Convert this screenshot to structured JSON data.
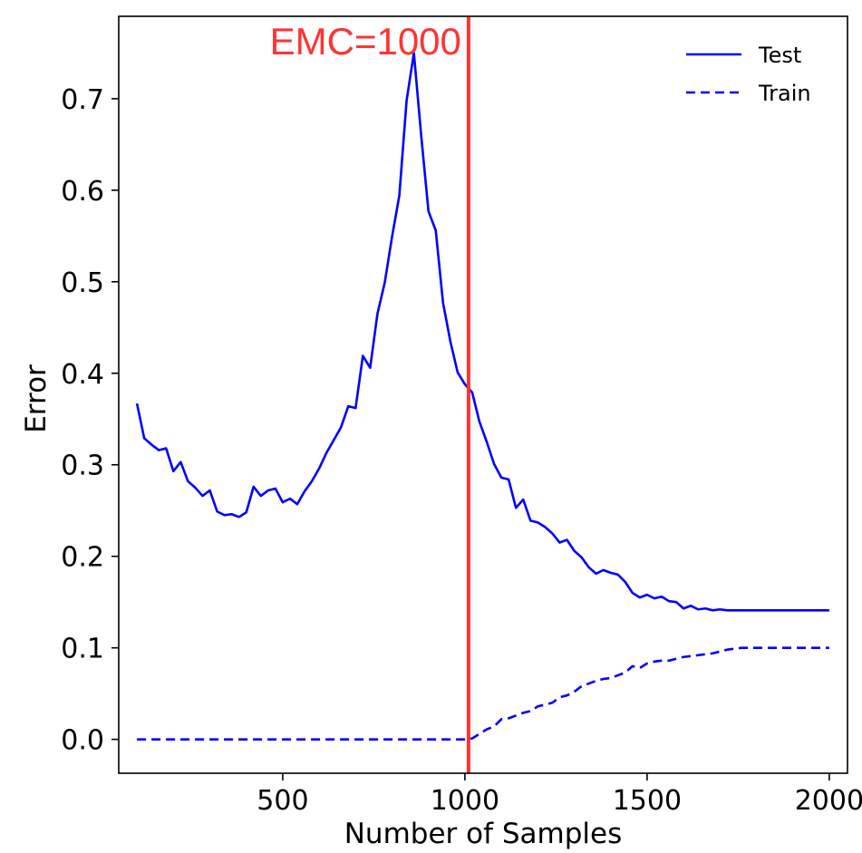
{
  "chart_data": {
    "type": "line",
    "xlabel": "Number of Samples",
    "ylabel": "Error",
    "xlim": [
      50,
      2050
    ],
    "ylim": [
      -0.037,
      0.79
    ],
    "xticks": [
      500,
      1000,
      1500,
      2000
    ],
    "xtick_labels": [
      "500",
      "1000",
      "1500",
      "2000"
    ],
    "yticks": [
      0.0,
      0.1,
      0.2,
      0.3,
      0.4,
      0.5,
      0.6,
      0.7
    ],
    "ytick_labels": [
      "0.0",
      "0.1",
      "0.2",
      "0.3",
      "0.4",
      "0.5",
      "0.6",
      "0.7"
    ],
    "grid": false,
    "legend_position": "top-right",
    "x": [
      100,
      120,
      140,
      160,
      180,
      200,
      220,
      240,
      260,
      280,
      300,
      320,
      340,
      360,
      380,
      400,
      420,
      440,
      460,
      480,
      500,
      520,
      540,
      560,
      580,
      600,
      620,
      640,
      660,
      680,
      700,
      720,
      740,
      760,
      780,
      800,
      820,
      840,
      860,
      880,
      900,
      920,
      940,
      960,
      980,
      1000,
      1020,
      1040,
      1060,
      1080,
      1100,
      1120,
      1140,
      1160,
      1180,
      1200,
      1220,
      1240,
      1260,
      1280,
      1300,
      1320,
      1340,
      1360,
      1380,
      1400,
      1420,
      1440,
      1460,
      1480,
      1500,
      1520,
      1540,
      1560,
      1580,
      1600,
      1620,
      1640,
      1660,
      1680,
      1700,
      1720,
      1740,
      1760,
      1780,
      1800,
      1820,
      1840,
      1860,
      1880,
      1900,
      1920,
      1940,
      1960,
      1980,
      2000
    ],
    "series": [
      {
        "name": "Test",
        "color": "#0000ff",
        "style": "solid",
        "values": [
          0.367,
          0.329,
          0.322,
          0.316,
          0.318,
          0.293,
          0.303,
          0.282,
          0.275,
          0.266,
          0.272,
          0.249,
          0.245,
          0.246,
          0.243,
          0.248,
          0.276,
          0.266,
          0.272,
          0.274,
          0.259,
          0.263,
          0.257,
          0.271,
          0.282,
          0.296,
          0.313,
          0.327,
          0.341,
          0.364,
          0.362,
          0.419,
          0.406,
          0.465,
          0.499,
          0.549,
          0.594,
          0.698,
          0.75,
          0.66,
          0.577,
          0.556,
          0.477,
          0.435,
          0.401,
          0.388,
          0.379,
          0.347,
          0.325,
          0.301,
          0.286,
          0.284,
          0.253,
          0.262,
          0.239,
          0.237,
          0.232,
          0.225,
          0.215,
          0.218,
          0.206,
          0.199,
          0.188,
          0.181,
          0.185,
          0.182,
          0.18,
          0.172,
          0.16,
          0.155,
          0.158,
          0.154,
          0.156,
          0.151,
          0.15,
          0.143,
          0.146,
          0.142,
          0.143,
          0.141,
          0.142,
          0.141,
          0.141,
          0.141,
          0.141,
          0.141,
          0.141,
          0.141,
          0.141,
          0.141,
          0.141,
          0.141,
          0.141,
          0.141,
          0.141,
          0.141
        ]
      },
      {
        "name": "Train",
        "color": "#0000ff",
        "style": "dashed",
        "values": [
          0.0,
          0.0,
          0.0,
          0.0,
          0.0,
          0.0,
          0.0,
          0.0,
          0.0,
          0.0,
          0.0,
          0.0,
          0.0,
          0.0,
          0.0,
          0.0,
          0.0,
          0.0,
          0.0,
          0.0,
          0.0,
          0.0,
          0.0,
          0.0,
          0.0,
          0.0,
          0.0,
          0.0,
          0.0,
          0.0,
          0.0,
          0.0,
          0.0,
          0.0,
          0.0,
          0.0,
          0.0,
          0.0,
          0.0,
          0.0,
          0.0,
          0.0,
          0.0,
          0.0,
          0.0,
          0.0,
          0.001,
          0.006,
          0.011,
          0.014,
          0.022,
          0.023,
          0.026,
          0.029,
          0.031,
          0.036,
          0.038,
          0.04,
          0.046,
          0.048,
          0.052,
          0.058,
          0.061,
          0.064,
          0.066,
          0.067,
          0.07,
          0.073,
          0.08,
          0.078,
          0.083,
          0.085,
          0.086,
          0.086,
          0.088,
          0.09,
          0.091,
          0.092,
          0.093,
          0.094,
          0.096,
          0.098,
          0.099,
          0.1,
          0.1,
          0.1,
          0.1,
          0.1,
          0.1,
          0.1,
          0.1,
          0.1,
          0.1,
          0.1,
          0.1,
          0.1
        ]
      }
    ],
    "annotations": [
      {
        "type": "vline",
        "x": 1010,
        "label": "EMC=1000",
        "color": "#ff3333"
      }
    ]
  }
}
